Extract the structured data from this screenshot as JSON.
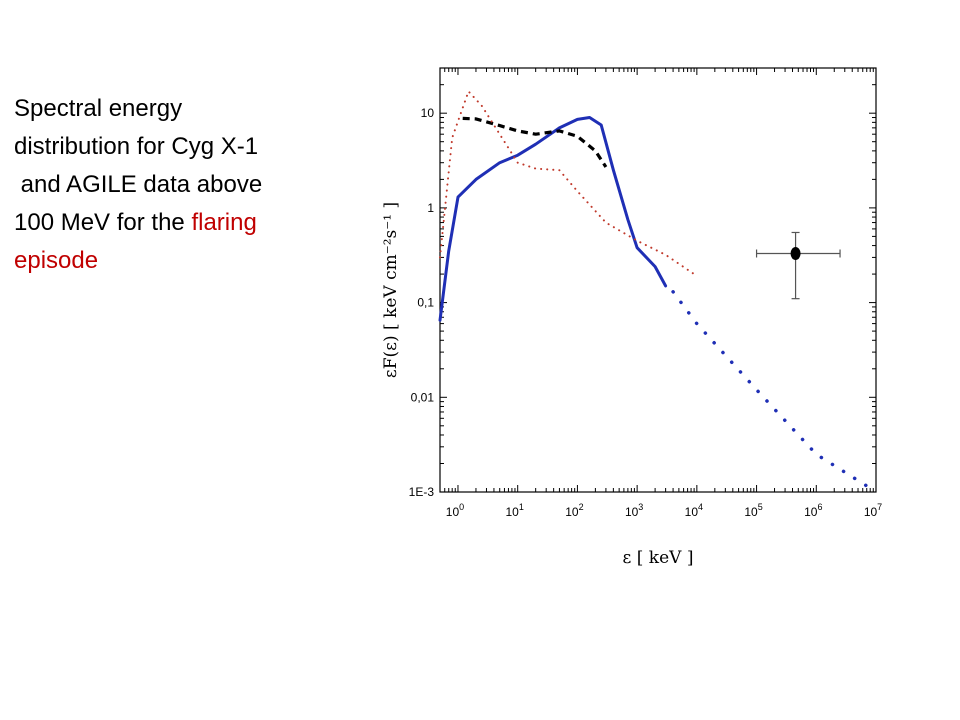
{
  "caption": {
    "line1": "Spectral energy",
    "line2": "distribution for Cyg X-1",
    "line3": " and AGILE data above",
    "line4_a": "100 MeV for the ",
    "line4_b": "flaring",
    "line5": "episode",
    "highlight_color": "#c00000"
  },
  "chart_data": {
    "type": "line",
    "xlabel": "ε [ keV ]",
    "ylabel": "εF(ε) [ keV cm⁻²s⁻¹ ]",
    "xscale": "log",
    "yscale": "log",
    "xlim": [
      0.5,
      10000000
    ],
    "ylim": [
      0.001,
      30
    ],
    "x_ticks": [
      {
        "value": 1,
        "base": "10",
        "exp": "0"
      },
      {
        "value": 10,
        "base": "10",
        "exp": "1"
      },
      {
        "value": 100,
        "base": "10",
        "exp": "2"
      },
      {
        "value": 1000,
        "base": "10",
        "exp": "3"
      },
      {
        "value": 10000,
        "base": "10",
        "exp": "4"
      },
      {
        "value": 100000,
        "base": "10",
        "exp": "5"
      },
      {
        "value": 1000000,
        "base": "10",
        "exp": "6"
      },
      {
        "value": 10000000,
        "base": "10",
        "exp": "7"
      }
    ],
    "y_ticks": [
      {
        "value": 10,
        "label": "10"
      },
      {
        "value": 1,
        "label": "1"
      },
      {
        "value": 0.1,
        "label": "0,1"
      },
      {
        "value": 0.01,
        "label": "0,01"
      },
      {
        "value": 0.001,
        "label": "1E-3"
      }
    ],
    "series": [
      {
        "style": "solid",
        "color": "#1f2fb5",
        "x": [
          0.5,
          0.7,
          1.0,
          2,
          5,
          10,
          20,
          50,
          100,
          160,
          250,
          400,
          700,
          1000,
          2000,
          3000
        ],
        "y": [
          0.065,
          0.35,
          1.3,
          2.0,
          3.0,
          3.6,
          4.7,
          7.0,
          8.6,
          9.0,
          7.5,
          2.5,
          0.75,
          0.38,
          0.24,
          0.15
        ]
      },
      {
        "style": "dotted",
        "color": "#1f2fb5",
        "x": [
          4000,
          10000,
          100000,
          1000000,
          8000000
        ],
        "y": [
          0.13,
          0.06,
          0.012,
          0.0025,
          0.0011
        ]
      },
      {
        "style": "dashed",
        "color": "#000000",
        "x": [
          1.2,
          2,
          5,
          10,
          20,
          50,
          100,
          200,
          300
        ],
        "y": [
          8.8,
          8.7,
          7.4,
          6.5,
          6.0,
          6.5,
          5.7,
          4.0,
          2.7
        ]
      },
      {
        "style": "dotted",
        "color": "#c0392b",
        "x": [
          0.5,
          0.8,
          1.5,
          2.5,
          5,
          10,
          20,
          50,
          100,
          300,
          1000,
          3000,
          9000
        ],
        "y": [
          0.3,
          5.5,
          17.0,
          12.0,
          6.0,
          3.0,
          2.6,
          2.5,
          1.5,
          0.7,
          0.45,
          0.32,
          0.2
        ]
      }
    ],
    "data_point": {
      "x": 450000,
      "y": 0.33,
      "x_err": [
        100000,
        2500000
      ],
      "y_err": [
        0.11,
        0.55
      ],
      "color": "#000000"
    }
  }
}
